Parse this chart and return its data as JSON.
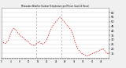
{
  "title": "Milwaukee Weather Outdoor Temperature per Minute (Last 24 Hours)",
  "background_color": "#f0f0f0",
  "plot_bg_color": "#ffffff",
  "line_color": "#cc0000",
  "grid_color": "#bbbbbb",
  "vline_color": "#999999",
  "ymin": 10,
  "ymax": 65,
  "ytick_values": [
    15,
    20,
    25,
    30,
    35,
    40,
    45,
    50,
    55,
    60
  ],
  "vlines_x": [
    0.33,
    0.565
  ],
  "n_points": 144,
  "y_values": [
    28,
    28,
    27,
    27,
    26,
    26,
    26,
    27,
    28,
    29,
    31,
    33,
    36,
    38,
    40,
    41,
    42,
    43,
    42,
    41,
    40,
    39,
    38,
    37,
    36,
    35,
    34,
    34,
    33,
    32,
    32,
    31,
    30,
    30,
    29,
    28,
    28,
    27,
    26,
    25,
    25,
    24,
    24,
    24,
    23,
    24,
    25,
    26,
    26,
    27,
    27,
    28,
    27,
    26,
    26,
    25,
    26,
    26,
    27,
    28,
    29,
    31,
    33,
    35,
    37,
    39,
    41,
    43,
    44,
    46,
    47,
    48,
    49,
    50,
    51,
    52,
    53,
    54,
    55,
    55,
    54,
    53,
    52,
    51,
    50,
    49,
    48,
    47,
    46,
    45,
    44,
    43,
    42,
    41,
    39,
    37,
    35,
    32,
    29,
    27,
    24,
    22,
    20,
    19,
    18,
    17,
    16,
    15,
    15,
    14,
    14,
    13,
    13,
    12,
    12,
    12,
    12,
    13,
    13,
    14,
    14,
    14,
    15,
    15,
    15,
    16,
    16,
    17,
    17,
    17,
    18,
    18,
    19,
    19,
    19,
    20,
    20,
    19,
    18,
    17,
    16,
    15,
    15,
    14
  ]
}
